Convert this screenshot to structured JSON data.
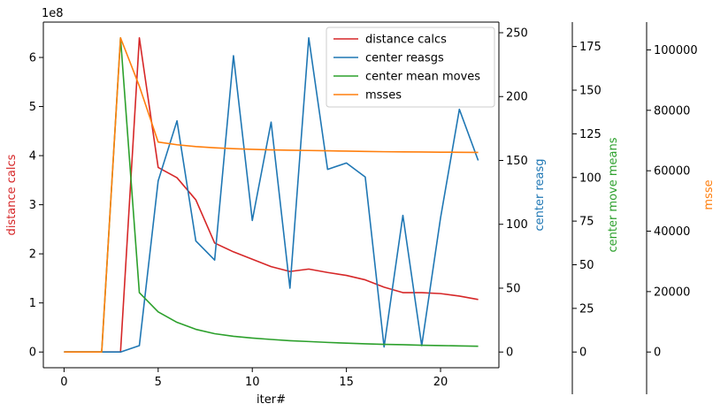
{
  "chart_data": {
    "type": "line",
    "xlabel": "iter#",
    "x": [
      0,
      1,
      2,
      3,
      4,
      5,
      6,
      7,
      8,
      9,
      10,
      11,
      12,
      13,
      14,
      15,
      16,
      17,
      18,
      19,
      20,
      21,
      22
    ],
    "x_ticks": [
      0,
      5,
      10,
      15,
      20
    ],
    "xlim": [
      -1.1,
      23.1
    ],
    "axes": [
      {
        "id": "dist",
        "label": "distance calcs",
        "color": "#d62728",
        "side": "left",
        "offset": "left",
        "ylim": [
          -0.32,
          6.72
        ],
        "ticks": [
          0,
          1,
          2,
          3,
          4,
          5,
          6
        ],
        "multiplier": "1e8"
      },
      {
        "id": "reas",
        "label": "center reasg",
        "color": "#1f77b4",
        "side": "right",
        "offset": "right",
        "ylim": [
          -12.3,
          258.3
        ],
        "ticks": [
          0,
          50,
          100,
          150,
          200,
          250
        ]
      },
      {
        "id": "move",
        "label": "center move means",
        "color": "#2ca02c",
        "side": "right",
        "offset": "offset-1",
        "ylim": [
          -9,
          189
        ],
        "ticks": [
          0,
          25,
          50,
          75,
          100,
          125,
          150,
          175
        ]
      },
      {
        "id": "msse",
        "label": "msse",
        "color": "#ff7f0e",
        "side": "right",
        "offset": "offset-2",
        "ylim": [
          -5200,
          109200
        ],
        "ticks": [
          0,
          20000,
          40000,
          60000,
          80000,
          100000
        ]
      }
    ],
    "series": [
      {
        "name": "distance calcs",
        "axis": "dist",
        "color": "#d62728",
        "values": [
          0,
          0,
          0,
          0,
          6.4,
          3.76,
          3.55,
          3.1,
          2.22,
          2.04,
          1.89,
          1.74,
          1.64,
          1.69,
          1.62,
          1.56,
          1.47,
          1.32,
          1.21,
          1.21,
          1.19,
          1.14,
          1.07
        ]
      },
      {
        "name": "center reasgs",
        "axis": "reas",
        "color": "#1f77b4",
        "values": [
          0,
          0,
          0,
          0,
          5,
          134,
          181,
          87,
          72,
          232,
          103,
          180,
          50,
          246,
          143,
          148,
          137,
          4,
          107,
          5,
          105,
          190,
          150
        ]
      },
      {
        "name": "center mean moves",
        "axis": "move",
        "color": "#2ca02c",
        "values": [
          0,
          0,
          0,
          180,
          34,
          23,
          17,
          13,
          10.5,
          9,
          8,
          7.2,
          6.5,
          6,
          5.5,
          5.1,
          4.7,
          4.4,
          4.2,
          3.9,
          3.7,
          3.5,
          3.3
        ]
      },
      {
        "name": "msses",
        "axis": "msse",
        "color": "#ff7f0e",
        "values": [
          0,
          0,
          0,
          104000,
          88000,
          69500,
          68600,
          68000,
          67600,
          67300,
          67100,
          66900,
          66800,
          66700,
          66600,
          66500,
          66400,
          66300,
          66250,
          66200,
          66150,
          66100,
          66050
        ]
      }
    ],
    "legend": {
      "position": "top-right"
    }
  }
}
